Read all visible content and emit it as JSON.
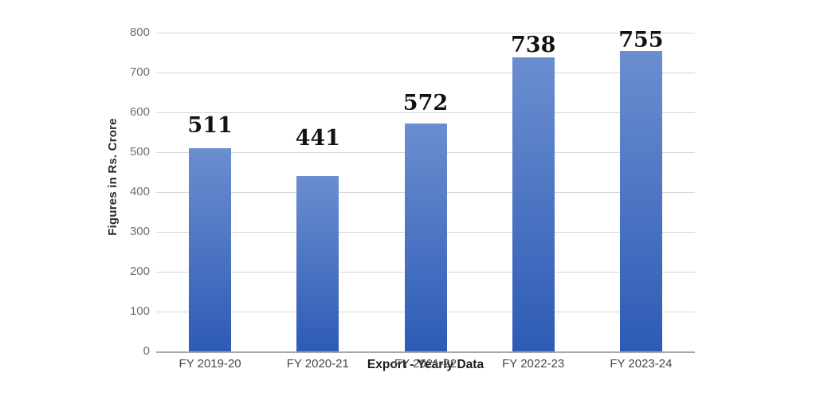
{
  "chart_data": {
    "type": "bar",
    "categories": [
      "FY 2019-20",
      "FY 2020-21",
      "FY 2021-22",
      "FY 2022-23",
      "FY 2023-24"
    ],
    "values": [
      511,
      441,
      572,
      738,
      755
    ],
    "value_labels": [
      "511",
      "441",
      "572",
      "738",
      "755"
    ],
    "xlabel": "Export - Yearly Data",
    "ylabel": "Figures in Rs. Crore",
    "ylim": [
      0,
      800
    ],
    "ytick_step": 100,
    "ytick_labels": [
      "0",
      "100",
      "200",
      "300",
      "400",
      "500",
      "600",
      "700",
      "800"
    ],
    "grid": true,
    "legend": "none",
    "colors": {
      "bar_gradient_top": "#6b8ed0",
      "bar_gradient_bottom": "#2d5bb5",
      "gridline": "#d6d6d6",
      "axis_line": "#a8a8a8",
      "ytick_text": "#6f6f6f",
      "xtick_text": "#474747",
      "value_label_text": "#121212",
      "background": "#ffffff"
    }
  }
}
